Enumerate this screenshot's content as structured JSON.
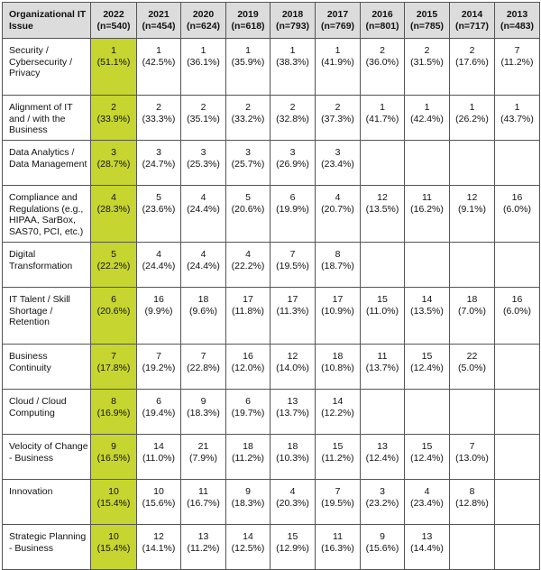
{
  "table": {
    "issue_header": "Organizational IT Issue",
    "highlight_color": "#c6d530",
    "header_bg": "#dcdcdc",
    "columns": [
      {
        "year": "2022",
        "n": "(n=540)"
      },
      {
        "year": "2021",
        "n": "(n=454)"
      },
      {
        "year": "2020",
        "n": "(n=624)"
      },
      {
        "year": "2019",
        "n": "(n=618)"
      },
      {
        "year": "2018",
        "n": "(n=793)"
      },
      {
        "year": "2017",
        "n": "(n=769)"
      },
      {
        "year": "2016",
        "n": "(n=801)"
      },
      {
        "year": "2015",
        "n": "(n=785)"
      },
      {
        "year": "2014",
        "n": "(n=717)"
      },
      {
        "year": "2013",
        "n": "(n=483)"
      }
    ],
    "rows": [
      {
        "issue": "Security / Cybersecurity / Privacy",
        "cells": [
          {
            "rank": "1",
            "pct": "(51.1%)"
          },
          {
            "rank": "1",
            "pct": "(42.5%)"
          },
          {
            "rank": "1",
            "pct": "(36.1%)"
          },
          {
            "rank": "1",
            "pct": "(35.9%)"
          },
          {
            "rank": "1",
            "pct": "(38.3%)"
          },
          {
            "rank": "1",
            "pct": "(41.9%)"
          },
          {
            "rank": "2",
            "pct": "(36.0%)"
          },
          {
            "rank": "2",
            "pct": "(31.5%)"
          },
          {
            "rank": "2",
            "pct": "(17.6%)"
          },
          {
            "rank": "7",
            "pct": "(11.2%)"
          }
        ]
      },
      {
        "issue": "Alignment of IT and / with the Business",
        "cells": [
          {
            "rank": "2",
            "pct": "(33.9%)"
          },
          {
            "rank": "2",
            "pct": "(33.3%)"
          },
          {
            "rank": "2",
            "pct": "(35.1%)"
          },
          {
            "rank": "2",
            "pct": "(33.2%)"
          },
          {
            "rank": "2",
            "pct": "(32.8%)"
          },
          {
            "rank": "2",
            "pct": "(37.3%)"
          },
          {
            "rank": "1",
            "pct": "(41.7%)"
          },
          {
            "rank": "1",
            "pct": "(42.4%)"
          },
          {
            "rank": "1",
            "pct": "(26.2%)"
          },
          {
            "rank": "1",
            "pct": "(43.7%)"
          }
        ]
      },
      {
        "issue": "Data Analytics / Data Management",
        "cells": [
          {
            "rank": "3",
            "pct": "(28.7%)"
          },
          {
            "rank": "3",
            "pct": "(24.7%)"
          },
          {
            "rank": "3",
            "pct": "(25.3%)"
          },
          {
            "rank": "3",
            "pct": "(25.7%)"
          },
          {
            "rank": "3",
            "pct": "(26.9%)"
          },
          {
            "rank": "3",
            "pct": "(23.4%)"
          },
          {
            "rank": "",
            "pct": ""
          },
          {
            "rank": "",
            "pct": ""
          },
          {
            "rank": "",
            "pct": ""
          },
          {
            "rank": "",
            "pct": ""
          }
        ]
      },
      {
        "issue": "Compliance and Regulations (e.g., HIPAA, SarBox, SAS70, PCI, etc.)",
        "cells": [
          {
            "rank": "4",
            "pct": "(28.3%)"
          },
          {
            "rank": "5",
            "pct": "(23.6%)"
          },
          {
            "rank": "4",
            "pct": "(24.4%)"
          },
          {
            "rank": "5",
            "pct": "(20.6%)"
          },
          {
            "rank": "6",
            "pct": "(19.9%)"
          },
          {
            "rank": "4",
            "pct": "(20.7%)"
          },
          {
            "rank": "12",
            "pct": "(13.5%)"
          },
          {
            "rank": "11",
            "pct": "(16.2%)"
          },
          {
            "rank": "12",
            "pct": "(9.1%)"
          },
          {
            "rank": "16",
            "pct": "(6.0%)"
          }
        ]
      },
      {
        "issue": "Digital Transformation",
        "cells": [
          {
            "rank": "5",
            "pct": "(22.2%)"
          },
          {
            "rank": "4",
            "pct": "(24.4%)"
          },
          {
            "rank": "4",
            "pct": "(24.4%)"
          },
          {
            "rank": "4",
            "pct": "(22.2%)"
          },
          {
            "rank": "7",
            "pct": "(19.5%)"
          },
          {
            "rank": "8",
            "pct": "(18.7%)"
          },
          {
            "rank": "",
            "pct": ""
          },
          {
            "rank": "",
            "pct": ""
          },
          {
            "rank": "",
            "pct": ""
          },
          {
            "rank": "",
            "pct": ""
          }
        ]
      },
      {
        "issue": "IT Talent / Skill Shortage / Retention",
        "cells": [
          {
            "rank": "6",
            "pct": "(20.6%)"
          },
          {
            "rank": "16",
            "pct": "(9.9%)"
          },
          {
            "rank": "18",
            "pct": "(9.6%)"
          },
          {
            "rank": "17",
            "pct": "(11.8%)"
          },
          {
            "rank": "17",
            "pct": "(11.3%)"
          },
          {
            "rank": "17",
            "pct": "(10.9%)"
          },
          {
            "rank": "15",
            "pct": "(11.0%)"
          },
          {
            "rank": "14",
            "pct": "(13.5%)"
          },
          {
            "rank": "18",
            "pct": "(7.0%)"
          },
          {
            "rank": "16",
            "pct": "(6.0%)"
          }
        ]
      },
      {
        "issue": "Business Continuity",
        "cells": [
          {
            "rank": "7",
            "pct": "(17.8%)"
          },
          {
            "rank": "7",
            "pct": "(19.2%)"
          },
          {
            "rank": "7",
            "pct": "(22.8%)"
          },
          {
            "rank": "16",
            "pct": "(12.0%)"
          },
          {
            "rank": "12",
            "pct": "(14.0%)"
          },
          {
            "rank": "18",
            "pct": "(10.8%)"
          },
          {
            "rank": "11",
            "pct": "(13.7%)"
          },
          {
            "rank": "15",
            "pct": "(12.4%)"
          },
          {
            "rank": "22",
            "pct": "(5.0%)"
          },
          {
            "rank": "",
            "pct": ""
          }
        ]
      },
      {
        "issue": "Cloud / Cloud Computing",
        "cells": [
          {
            "rank": "8",
            "pct": "(16.9%)"
          },
          {
            "rank": "6",
            "pct": "(19.4%)"
          },
          {
            "rank": "9",
            "pct": "(18.3%)"
          },
          {
            "rank": "6",
            "pct": "(19.7%)"
          },
          {
            "rank": "13",
            "pct": "(13.7%)"
          },
          {
            "rank": "14",
            "pct": "(12.2%)"
          },
          {
            "rank": "",
            "pct": ""
          },
          {
            "rank": "",
            "pct": ""
          },
          {
            "rank": "",
            "pct": ""
          },
          {
            "rank": "",
            "pct": ""
          }
        ]
      },
      {
        "issue": "Velocity of Change - Business",
        "cells": [
          {
            "rank": "9",
            "pct": "(16.5%)"
          },
          {
            "rank": "14",
            "pct": "(11.0%)"
          },
          {
            "rank": "21",
            "pct": "(7.9%)"
          },
          {
            "rank": "18",
            "pct": "(11.2%)"
          },
          {
            "rank": "18",
            "pct": "(10.3%)"
          },
          {
            "rank": "15",
            "pct": "(11.2%)"
          },
          {
            "rank": "13",
            "pct": "(12.4%)"
          },
          {
            "rank": "15",
            "pct": "(12.4%)"
          },
          {
            "rank": "7",
            "pct": "(13.0%)"
          },
          {
            "rank": "",
            "pct": ""
          }
        ]
      },
      {
        "issue": "Innovation",
        "cells": [
          {
            "rank": "10",
            "pct": "(15.4%)"
          },
          {
            "rank": "10",
            "pct": "(15.6%)"
          },
          {
            "rank": "11",
            "pct": "(16.7%)"
          },
          {
            "rank": "9",
            "pct": "(18.3%)"
          },
          {
            "rank": "4",
            "pct": "(20.3%)"
          },
          {
            "rank": "7",
            "pct": "(19.5%)"
          },
          {
            "rank": "3",
            "pct": "(23.2%)"
          },
          {
            "rank": "4",
            "pct": "(23.4%)"
          },
          {
            "rank": "8",
            "pct": "(12.8%)"
          },
          {
            "rank": "",
            "pct": ""
          }
        ]
      },
      {
        "issue": "Strategic Planning - Business",
        "cells": [
          {
            "rank": "10",
            "pct": "(15.4%)"
          },
          {
            "rank": "12",
            "pct": "(14.1%)"
          },
          {
            "rank": "13",
            "pct": "(11.2%)"
          },
          {
            "rank": "14",
            "pct": "(12.5%)"
          },
          {
            "rank": "15",
            "pct": "(12.9%)"
          },
          {
            "rank": "11",
            "pct": "(16.3%)"
          },
          {
            "rank": "9",
            "pct": "(15.6%)"
          },
          {
            "rank": "13",
            "pct": "(14.4%)"
          },
          {
            "rank": "",
            "pct": ""
          },
          {
            "rank": "",
            "pct": ""
          }
        ]
      }
    ]
  }
}
